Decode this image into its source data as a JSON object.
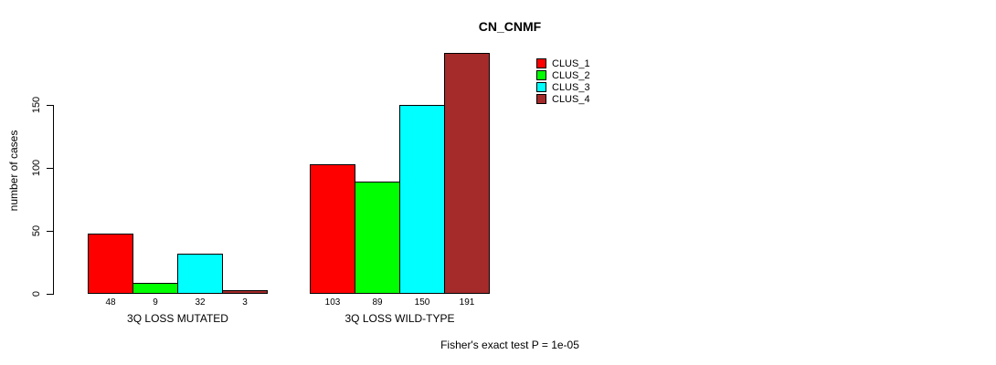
{
  "title": "CN_CNMF",
  "ylabel": "number of cases",
  "footer": "Fisher's exact test P = 1e-05",
  "chart_data": {
    "type": "bar",
    "title": "CN_CNMF",
    "xlabel": "",
    "ylabel": "number of cases",
    "categories": [
      "3Q LOSS MUTATED",
      "3Q LOSS WILD-TYPE"
    ],
    "series": [
      {
        "name": "CLUS_1",
        "color": "#ff0000",
        "values": [
          48,
          103
        ]
      },
      {
        "name": "CLUS_2",
        "color": "#00ff00",
        "values": [
          9,
          89
        ]
      },
      {
        "name": "CLUS_3",
        "color": "#00ffff",
        "values": [
          32,
          150
        ]
      },
      {
        "name": "CLUS_4",
        "color": "#a52a2a",
        "values": [
          3,
          191
        ]
      }
    ],
    "bar_value_labels_shown": true,
    "yticks": [
      0,
      50,
      100,
      150
    ],
    "ylim": [
      0,
      191
    ],
    "grid": false,
    "legend_position": "top-right",
    "annotation": "Fisher's exact test P = 1e-05"
  }
}
